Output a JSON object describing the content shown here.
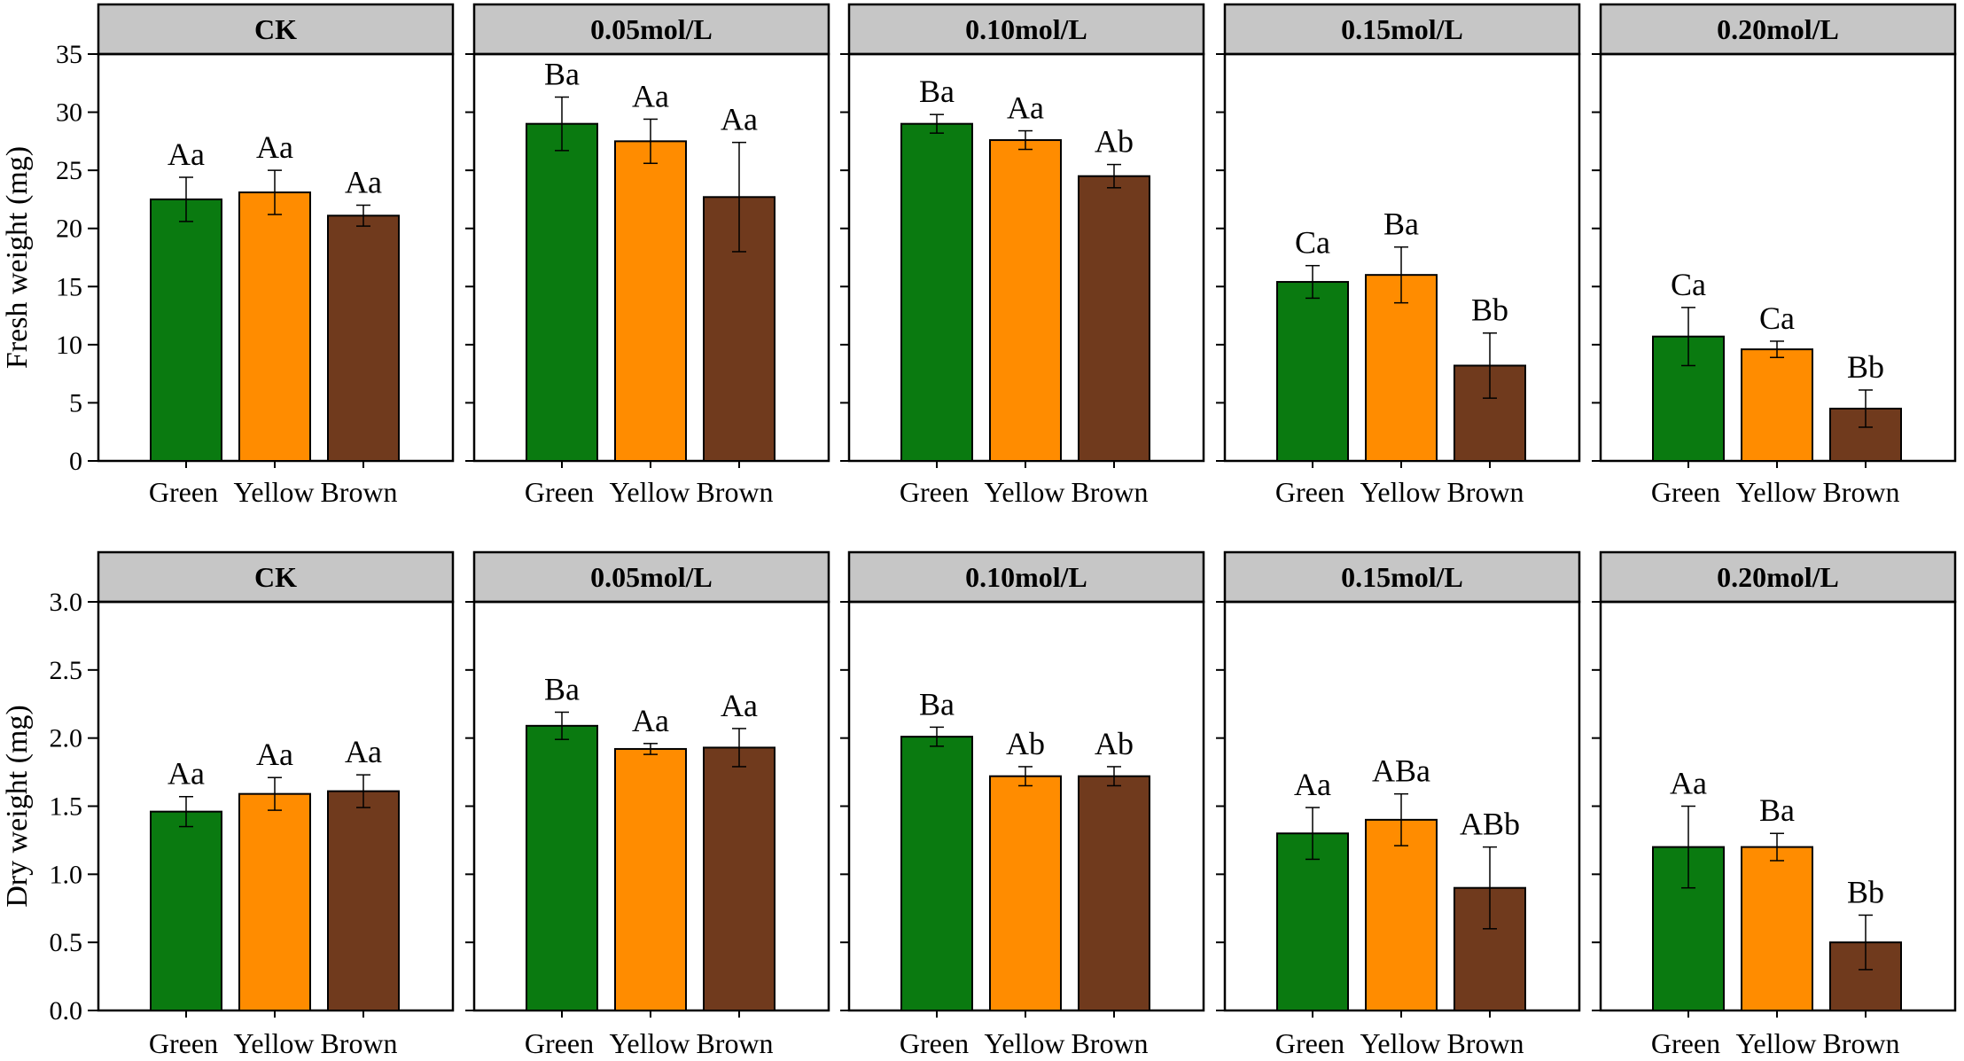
{
  "figure": {
    "colors": {
      "Green": "#0a7a10",
      "Yellow": "#ff8c00",
      "Brown": "#703a1d",
      "header": "#c6c6c6"
    },
    "categories": [
      "Green",
      "Yellow",
      "Brown"
    ],
    "panel_titles": [
      "CK",
      "0.05mol/L",
      "0.10mol/L",
      "0.15mol/L",
      "0.20mol/L"
    ]
  },
  "chart_data": [
    {
      "type": "bar",
      "name": "fresh",
      "ylabel": "Fresh weight (mg)",
      "ylim": [
        0,
        35
      ],
      "yticks": [
        0,
        5,
        10,
        15,
        20,
        25,
        30,
        35
      ],
      "categories": [
        "Green",
        "Yellow",
        "Brown"
      ],
      "panels": [
        {
          "title": "CK",
          "values": [
            22.5,
            23.1,
            21.1
          ],
          "errors": [
            1.9,
            1.9,
            0.9
          ],
          "labels": [
            "Aa",
            "Aa",
            "Aa"
          ]
        },
        {
          "title": "0.05mol/L",
          "values": [
            29.0,
            27.5,
            22.7
          ],
          "errors": [
            2.3,
            1.9,
            4.7
          ],
          "labels": [
            "Ba",
            "Aa",
            "Aa"
          ]
        },
        {
          "title": "0.10mol/L",
          "values": [
            29.0,
            27.6,
            24.5
          ],
          "errors": [
            0.8,
            0.8,
            1.0
          ],
          "labels": [
            "Ba",
            "Aa",
            "Ab"
          ]
        },
        {
          "title": "0.15mol/L",
          "values": [
            15.4,
            16.0,
            8.2
          ],
          "errors": [
            1.4,
            2.4,
            2.8
          ],
          "labels": [
            "Ca",
            "Ba",
            "Bb"
          ]
        },
        {
          "title": "0.20mol/L",
          "values": [
            10.7,
            9.6,
            4.5
          ],
          "errors": [
            2.5,
            0.7,
            1.6
          ],
          "labels": [
            "Ca",
            "Ca",
            "Bb"
          ]
        }
      ]
    },
    {
      "type": "bar",
      "name": "dry",
      "ylabel": "Dry weight (mg)",
      "ylim": [
        0,
        3.0
      ],
      "yticks": [
        "0.0",
        "0.5",
        "1.0",
        "1.5",
        "2.0",
        "2.5",
        "3.0"
      ],
      "categories": [
        "Green",
        "Yellow",
        "Brown"
      ],
      "panels": [
        {
          "title": "CK",
          "values": [
            1.46,
            1.59,
            1.61
          ],
          "errors": [
            0.11,
            0.12,
            0.12
          ],
          "labels": [
            "Aa",
            "Aa",
            "Aa"
          ]
        },
        {
          "title": "0.05mol/L",
          "values": [
            2.09,
            1.92,
            1.93
          ],
          "errors": [
            0.1,
            0.04,
            0.14
          ],
          "labels": [
            "Ba",
            "Aa",
            "Aa"
          ]
        },
        {
          "title": "0.10mol/L",
          "values": [
            2.01,
            1.72,
            1.72
          ],
          "errors": [
            0.07,
            0.07,
            0.07
          ],
          "labels": [
            "Ba",
            "Ab",
            "Ab"
          ]
        },
        {
          "title": "0.15mol/L",
          "values": [
            1.3,
            1.4,
            0.9
          ],
          "errors": [
            0.19,
            0.19,
            0.3
          ],
          "labels": [
            "Aa",
            "ABa",
            "ABb"
          ]
        },
        {
          "title": "0.20mol/L",
          "values": [
            1.2,
            1.2,
            0.5
          ],
          "errors": [
            0.3,
            0.1,
            0.2
          ],
          "labels": [
            "Aa",
            "Ba",
            "Bb"
          ]
        }
      ]
    }
  ]
}
